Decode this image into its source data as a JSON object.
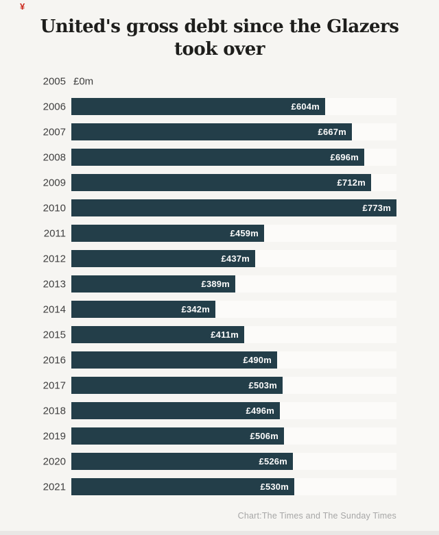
{
  "watermark": "¥",
  "header": {
    "title_line1": "United's gross debt since the Glazers",
    "title_line2": "took over"
  },
  "footer": {
    "caption": "Chart:The Times and The Sunday Times"
  },
  "colors": {
    "page_bg": "#f6f5f2",
    "bar_fill": "#233e49",
    "row_stripe": "#fcfbf9",
    "year_label": "#404040",
    "value_label": "#fafafa",
    "title_text": "#1e1e1c",
    "footer_text": "#a6a6a6",
    "watermark_red": "#cc2a1e",
    "bottom_strip": "#e9e7e5"
  },
  "chart_data": {
    "type": "bar",
    "orientation": "horizontal",
    "title": "United's gross debt since the Glazers took over",
    "xlabel": "",
    "ylabel": "",
    "unit": "£m",
    "xlim": [
      0,
      773
    ],
    "grid": false,
    "legend": "none",
    "value_label_position": "inside-end",
    "categories": [
      "2005",
      "2006",
      "2007",
      "2008",
      "2009",
      "2010",
      "2011",
      "2012",
      "2013",
      "2014",
      "2015",
      "2016",
      "2017",
      "2018",
      "2019",
      "2020",
      "2021"
    ],
    "values": [
      0,
      604,
      667,
      696,
      712,
      773,
      459,
      437,
      389,
      342,
      411,
      490,
      503,
      496,
      506,
      526,
      530
    ],
    "labels": [
      "£0m",
      "£604m",
      "£667m",
      "£696m",
      "£712m",
      "£773m",
      "£459m",
      "£437m",
      "£389m",
      "£342m",
      "£411m",
      "£490m",
      "£503m",
      "£496m",
      "£506m",
      "£526m",
      "£530m"
    ],
    "source": "Chart:The Times and The Sunday Times"
  }
}
